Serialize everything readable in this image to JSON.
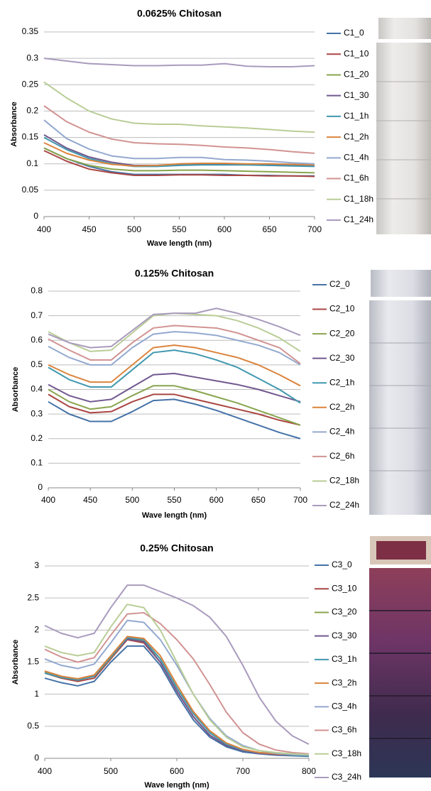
{
  "chart_data": [
    {
      "type": "line",
      "title": "0.0625% Chitosan",
      "x_label": "Wave length (nm)",
      "y_label": "Absorbance",
      "x": [
        400,
        425,
        450,
        475,
        500,
        525,
        550,
        575,
        600,
        625,
        650,
        675,
        700
      ],
      "xlim": [
        400,
        700
      ],
      "xticks": [
        400,
        450,
        500,
        550,
        600,
        650,
        700
      ],
      "ylim": [
        0,
        0.35
      ],
      "yticks": [
        0,
        0.05,
        0.1,
        0.15,
        0.2,
        0.25,
        0.3,
        0.35
      ],
      "grid": true,
      "legend": "right",
      "series": [
        {
          "name": "C1_0",
          "color": "#4572a7",
          "values": [
            0.13,
            0.11,
            0.095,
            0.085,
            0.08,
            0.08,
            0.08,
            0.08,
            0.08,
            0.078,
            0.078,
            0.077,
            0.077
          ]
        },
        {
          "name": "C1_10",
          "color": "#aa4643",
          "values": [
            0.125,
            0.105,
            0.09,
            0.083,
            0.078,
            0.078,
            0.079,
            0.079,
            0.078,
            0.078,
            0.077,
            0.077,
            0.076
          ]
        },
        {
          "name": "C1_20",
          "color": "#89a54e",
          "values": [
            0.13,
            0.11,
            0.097,
            0.09,
            0.087,
            0.087,
            0.088,
            0.088,
            0.087,
            0.086,
            0.085,
            0.084,
            0.083
          ]
        },
        {
          "name": "C1_30",
          "color": "#71588f",
          "values": [
            0.155,
            0.13,
            0.113,
            0.103,
            0.097,
            0.097,
            0.099,
            0.1,
            0.1,
            0.099,
            0.098,
            0.097,
            0.096
          ]
        },
        {
          "name": "C1_1h",
          "color": "#4198af",
          "values": [
            0.15,
            0.127,
            0.11,
            0.1,
            0.095,
            0.095,
            0.097,
            0.098,
            0.098,
            0.098,
            0.097,
            0.096,
            0.095
          ]
        },
        {
          "name": "C1_2h",
          "color": "#db843d",
          "values": [
            0.14,
            0.12,
            0.107,
            0.099,
            0.096,
            0.097,
            0.1,
            0.101,
            0.101,
            0.1,
            0.1,
            0.099,
            0.098
          ]
        },
        {
          "name": "C1_4h",
          "color": "#93a9cf",
          "values": [
            0.183,
            0.148,
            0.128,
            0.115,
            0.11,
            0.11,
            0.112,
            0.112,
            0.108,
            0.107,
            0.105,
            0.102,
            0.1
          ]
        },
        {
          "name": "C1_6h",
          "color": "#d19392",
          "values": [
            0.21,
            0.18,
            0.16,
            0.147,
            0.14,
            0.138,
            0.137,
            0.135,
            0.132,
            0.13,
            0.127,
            0.123,
            0.12
          ]
        },
        {
          "name": "C1_18h",
          "color": "#b9cd96",
          "values": [
            0.255,
            0.225,
            0.2,
            0.185,
            0.177,
            0.175,
            0.175,
            0.172,
            0.17,
            0.168,
            0.165,
            0.162,
            0.16
          ]
        },
        {
          "name": "C1_24h",
          "color": "#a99bbd",
          "values": [
            0.3,
            0.295,
            0.29,
            0.288,
            0.286,
            0.286,
            0.287,
            0.287,
            0.29,
            0.285,
            0.284,
            0.284,
            0.286
          ]
        }
      ]
    },
    {
      "type": "line",
      "title": "0.125% Chitosan",
      "x_label": "Wave length (nm)",
      "y_label": "Absorbance",
      "x": [
        400,
        425,
        450,
        475,
        500,
        525,
        550,
        575,
        600,
        625,
        650,
        675,
        700
      ],
      "xlim": [
        400,
        700
      ],
      "xticks": [
        400,
        450,
        500,
        550,
        600,
        650,
        700
      ],
      "ylim": [
        0,
        0.8
      ],
      "yticks": [
        0,
        0.1,
        0.2,
        0.3,
        0.4,
        0.5,
        0.6,
        0.7,
        0.8
      ],
      "grid": true,
      "legend": "right",
      "series": [
        {
          "name": "C2_0",
          "color": "#4572a7",
          "values": [
            0.35,
            0.3,
            0.27,
            0.27,
            0.31,
            0.355,
            0.36,
            0.34,
            0.315,
            0.285,
            0.255,
            0.225,
            0.2
          ]
        },
        {
          "name": "C2_10",
          "color": "#aa4643",
          "values": [
            0.38,
            0.33,
            0.305,
            0.31,
            0.35,
            0.38,
            0.38,
            0.36,
            0.34,
            0.32,
            0.3,
            0.275,
            0.255
          ]
        },
        {
          "name": "C2_20",
          "color": "#89a54e",
          "values": [
            0.4,
            0.35,
            0.32,
            0.33,
            0.375,
            0.415,
            0.415,
            0.395,
            0.37,
            0.345,
            0.315,
            0.285,
            0.255
          ]
        },
        {
          "name": "C2_30",
          "color": "#71588f",
          "values": [
            0.42,
            0.375,
            0.35,
            0.36,
            0.41,
            0.46,
            0.465,
            0.45,
            0.435,
            0.42,
            0.4,
            0.375,
            0.35
          ]
        },
        {
          "name": "C2_1h",
          "color": "#4198af",
          "values": [
            0.49,
            0.44,
            0.41,
            0.41,
            0.48,
            0.55,
            0.56,
            0.545,
            0.52,
            0.49,
            0.445,
            0.4,
            0.345
          ]
        },
        {
          "name": "C2_2h",
          "color": "#db843d",
          "values": [
            0.5,
            0.46,
            0.43,
            0.43,
            0.5,
            0.57,
            0.58,
            0.57,
            0.55,
            0.53,
            0.5,
            0.46,
            0.415
          ]
        },
        {
          "name": "C2_4h",
          "color": "#93a9cf",
          "values": [
            0.575,
            0.53,
            0.5,
            0.5,
            0.57,
            0.625,
            0.635,
            0.63,
            0.62,
            0.6,
            0.58,
            0.55,
            0.5
          ]
        },
        {
          "name": "C2_6h",
          "color": "#d19392",
          "values": [
            0.605,
            0.56,
            0.52,
            0.52,
            0.59,
            0.65,
            0.66,
            0.655,
            0.65,
            0.63,
            0.6,
            0.57,
            0.505
          ]
        },
        {
          "name": "C2_18h",
          "color": "#b9cd96",
          "values": [
            0.635,
            0.59,
            0.555,
            0.56,
            0.63,
            0.7,
            0.71,
            0.705,
            0.7,
            0.68,
            0.65,
            0.61,
            0.555
          ]
        },
        {
          "name": "C2_24h",
          "color": "#a99bbd",
          "values": [
            0.625,
            0.59,
            0.57,
            0.575,
            0.64,
            0.705,
            0.71,
            0.71,
            0.73,
            0.71,
            0.685,
            0.655,
            0.62
          ]
        }
      ]
    },
    {
      "type": "line",
      "title": "0.25% Chitosan",
      "x_label": "Wave length (nm)",
      "y_label": "Absorbance",
      "x": [
        400,
        425,
        450,
        475,
        500,
        525,
        550,
        575,
        600,
        625,
        650,
        675,
        700,
        725,
        750,
        775,
        800
      ],
      "xlim": [
        400,
        800
      ],
      "xticks": [
        400,
        500,
        600,
        700,
        800
      ],
      "ylim": [
        0,
        3
      ],
      "yticks": [
        0,
        0.5,
        1,
        1.5,
        2,
        2.5,
        3
      ],
      "grid": true,
      "legend": "right",
      "series": [
        {
          "name": "C3_0",
          "color": "#4572a7",
          "values": [
            1.25,
            1.18,
            1.13,
            1.2,
            1.5,
            1.75,
            1.75,
            1.45,
            1.0,
            0.6,
            0.33,
            0.18,
            0.1,
            0.07,
            0.05,
            0.04,
            0.03
          ]
        },
        {
          "name": "C3_10",
          "color": "#aa4643",
          "values": [
            1.33,
            1.25,
            1.2,
            1.25,
            1.55,
            1.85,
            1.8,
            1.5,
            1.05,
            0.65,
            0.36,
            0.2,
            0.12,
            0.08,
            0.06,
            0.05,
            0.04
          ]
        },
        {
          "name": "C3_20",
          "color": "#89a54e",
          "values": [
            1.35,
            1.27,
            1.22,
            1.28,
            1.57,
            1.87,
            1.83,
            1.55,
            1.1,
            0.7,
            0.4,
            0.22,
            0.13,
            0.09,
            0.07,
            0.05,
            0.04
          ]
        },
        {
          "name": "C3_30",
          "color": "#71588f",
          "values": [
            1.36,
            1.28,
            1.23,
            1.29,
            1.58,
            1.86,
            1.82,
            1.5,
            1.05,
            0.65,
            0.36,
            0.2,
            0.12,
            0.08,
            0.06,
            0.05,
            0.04
          ]
        },
        {
          "name": "C3_1h",
          "color": "#4198af",
          "values": [
            1.33,
            1.26,
            1.22,
            1.28,
            1.58,
            1.88,
            1.85,
            1.55,
            1.1,
            0.7,
            0.4,
            0.22,
            0.13,
            0.09,
            0.07,
            0.05,
            0.04
          ]
        },
        {
          "name": "C3_2h",
          "color": "#db843d",
          "values": [
            1.36,
            1.28,
            1.24,
            1.3,
            1.6,
            1.9,
            1.87,
            1.6,
            1.15,
            0.73,
            0.43,
            0.24,
            0.14,
            0.09,
            0.07,
            0.06,
            0.05
          ]
        },
        {
          "name": "C3_4h",
          "color": "#93a9cf",
          "values": [
            1.55,
            1.45,
            1.4,
            1.47,
            1.8,
            2.15,
            2.12,
            1.85,
            1.45,
            1.0,
            0.62,
            0.35,
            0.2,
            0.12,
            0.08,
            0.06,
            0.05
          ]
        },
        {
          "name": "C3_6h",
          "color": "#d19392",
          "values": [
            1.7,
            1.58,
            1.5,
            1.57,
            1.92,
            2.25,
            2.27,
            2.1,
            1.85,
            1.55,
            1.15,
            0.72,
            0.4,
            0.22,
            0.13,
            0.09,
            0.07
          ]
        },
        {
          "name": "C3_18h",
          "color": "#b9cd96",
          "values": [
            1.75,
            1.65,
            1.6,
            1.65,
            2.05,
            2.4,
            2.35,
            2.0,
            1.5,
            1.0,
            0.6,
            0.33,
            0.18,
            0.12,
            0.09,
            0.07,
            0.06
          ]
        },
        {
          "name": "C3_24h",
          "color": "#a99bbd",
          "values": [
            2.07,
            1.95,
            1.88,
            1.95,
            2.35,
            2.7,
            2.7,
            2.6,
            2.5,
            2.38,
            2.2,
            1.9,
            1.45,
            0.95,
            0.58,
            0.35,
            0.22
          ]
        }
      ]
    }
  ]
}
